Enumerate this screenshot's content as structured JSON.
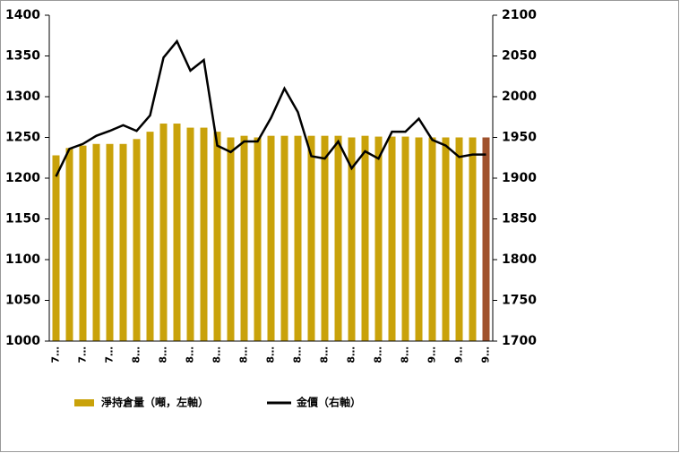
{
  "chart_data": {
    "type": "bar_line",
    "categories": [
      "7…",
      null,
      "7…",
      null,
      "7…",
      null,
      "8…",
      null,
      "8…",
      null,
      "8…",
      null,
      "8…",
      null,
      "8…",
      null,
      "8…",
      null,
      "8…",
      null,
      "8…",
      null,
      "8…",
      null,
      "8…",
      null,
      "8…",
      null,
      "9…",
      null,
      "9…",
      null,
      "9…"
    ],
    "series": [
      {
        "name": "淨持倉量（噸，左軸）",
        "type": "bar",
        "axis": "y",
        "color": "#c9a20a",
        "values": [
          1228,
          1237,
          1240,
          1242,
          1242,
          1242,
          1248,
          1257,
          1267,
          1267,
          1262,
          1262,
          1257,
          1250,
          1252,
          1250,
          1252,
          1252,
          1252,
          1252,
          1252,
          1252,
          1250,
          1252,
          1251,
          1251,
          1251,
          1250,
          1250,
          1250,
          1250,
          1250,
          1250
        ],
        "bar_colors": [
          "#c9a20a",
          "#c9a20a",
          "#c9a20a",
          "#c9a20a",
          "#c9a20a",
          "#c9a20a",
          "#c9a20a",
          "#c9a20a",
          "#c9a20a",
          "#c9a20a",
          "#c9a20a",
          "#c9a20a",
          "#c9a20a",
          "#c9a20a",
          "#c9a20a",
          "#c9a20a",
          "#c9a20a",
          "#c9a20a",
          "#c9a20a",
          "#c9a20a",
          "#c9a20a",
          "#c9a20a",
          "#c9a20a",
          "#c9a20a",
          "#c9a20a",
          "#c9a20a",
          "#c9a20a",
          "#c9a20a",
          "#c9a20a",
          "#c9a20a",
          "#c9a20a",
          "#c9a20a",
          "#a0522d"
        ]
      },
      {
        "name": "金價（右軸）",
        "type": "line",
        "axis": "y2",
        "color": "#000000",
        "values": [
          1902,
          1936,
          1942,
          1952,
          1958,
          1965,
          1958,
          1977,
          2048,
          2068,
          2032,
          2045,
          1940,
          1932,
          1945,
          1945,
          1974,
          2010,
          1981,
          1927,
          1924,
          1945,
          1912,
          1933,
          1924,
          1957,
          1957,
          1973,
          1947,
          1940,
          1926,
          1929,
          1929
        ]
      }
    ],
    "ylim": [
      1000,
      1400
    ],
    "yticks": [
      1000,
      1050,
      1100,
      1150,
      1200,
      1250,
      1300,
      1350,
      1400
    ],
    "y2lim": [
      1700,
      2100
    ],
    "y2ticks": [
      1700,
      1750,
      1800,
      1850,
      1900,
      1950,
      2000,
      2050,
      2100
    ],
    "legend": "bottom"
  }
}
